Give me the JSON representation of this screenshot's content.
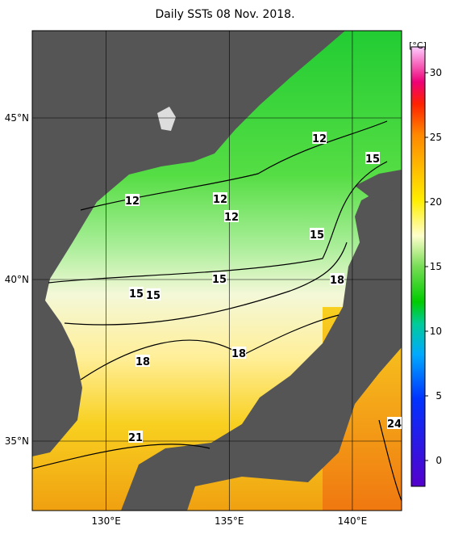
{
  "header": {
    "title": "Daily SSTs 08 Nov. 2018."
  },
  "map": {
    "latlim": [
      32.85,
      47.7
    ],
    "lonlim": [
      127,
      142
    ],
    "lat_ticks": [
      {
        "value": 45,
        "label": "45°N"
      },
      {
        "value": 40,
        "label": "40°N"
      },
      {
        "value": 35,
        "label": "35°N"
      }
    ],
    "lon_ticks": [
      {
        "value": 130,
        "label": "130°E"
      },
      {
        "value": 135,
        "label": "135°E"
      },
      {
        "value": 140,
        "label": "140°E"
      }
    ],
    "contour_labels": [
      12,
      15,
      12,
      12,
      12,
      15,
      15,
      15,
      15,
      18,
      18,
      18,
      21,
      24
    ]
  },
  "colorbar": {
    "unit": "[°C]",
    "lim": [
      -2,
      32
    ],
    "ticks": [
      0,
      5,
      10,
      15,
      20,
      25,
      30
    ]
  }
}
